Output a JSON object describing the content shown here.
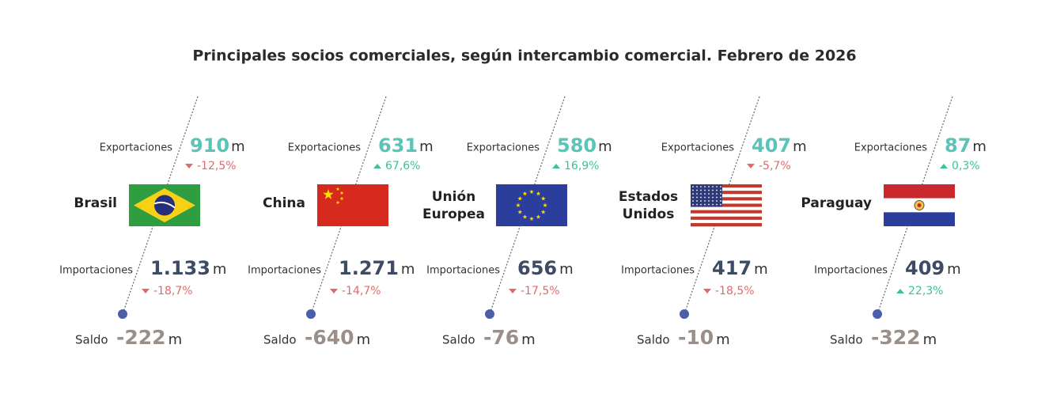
{
  "title": "Principales socios comerciales, según intercambio comercial. Febrero de 2026",
  "labels": {
    "exports": "Exportaciones",
    "imports": "Importaciones",
    "balance": "Saldo",
    "unit": "m"
  },
  "partners": [
    {
      "name": "Brasil",
      "exports": "910",
      "exports_change": "-12,5%",
      "imports": "1.133",
      "imports_change": "-18,7%",
      "balance": "-222"
    },
    {
      "name": "China",
      "exports": "631",
      "exports_change": "67,6%",
      "imports": "1.271",
      "imports_change": "-14,7%",
      "balance": "-640"
    },
    {
      "name": "Unión Europea",
      "exports": "580",
      "exports_change": "16,9%",
      "imports": "656",
      "imports_change": "-17,5%",
      "balance": "-76"
    },
    {
      "name": "Estados Unidos",
      "exports": "407",
      "exports_change": "-5,7%",
      "imports": "417",
      "imports_change": "-18,5%",
      "balance": "-10"
    },
    {
      "name": "Paraguay",
      "exports": "87",
      "exports_change": "0,3%",
      "imports": "409",
      "imports_change": "22,3%",
      "balance": "-322"
    }
  ]
}
